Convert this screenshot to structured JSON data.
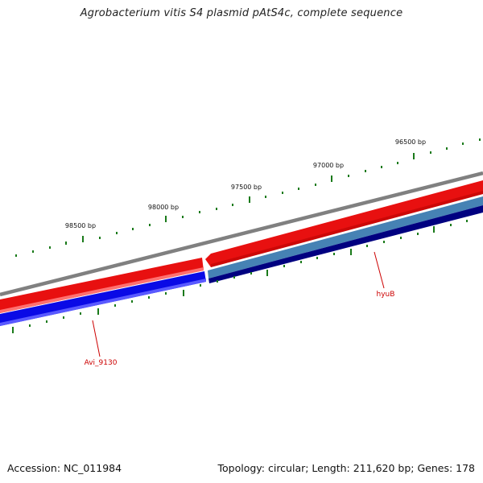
{
  "title": "Agrobacterium vitis S4 plasmid pAtS4c, complete sequence",
  "footer": {
    "accession": "Accession: NC_011984",
    "summary": "Topology: circular; Length: 211,620 bp; Genes: 178"
  },
  "ticks": [
    {
      "label": "96500 bp"
    },
    {
      "label": "97000 bp"
    },
    {
      "label": "97500 bp"
    },
    {
      "label": "98000 bp"
    },
    {
      "label": "98500 bp"
    }
  ],
  "genes": [
    {
      "name": "hyuB"
    },
    {
      "name": "Avi_9130"
    }
  ],
  "colors": {
    "backbone": "#808080",
    "strand_plus": "#e00000",
    "strand_minus": "#0000e6",
    "strand_minus_dark": "#000080",
    "strand_steel": "#4682b4",
    "tick": "#1a7a1a",
    "label": "#cc0000"
  }
}
